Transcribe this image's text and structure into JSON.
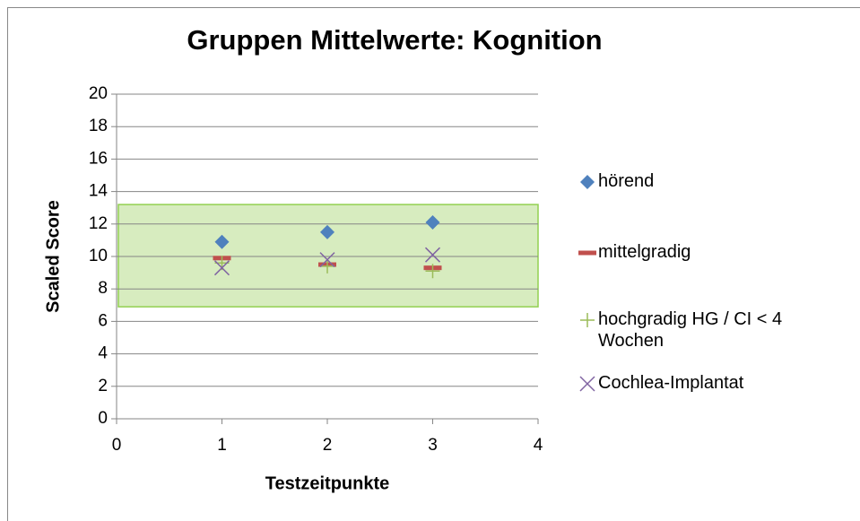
{
  "chart_data": {
    "type": "scatter",
    "title": "Gruppen Mittelwerte:  Kognition",
    "x_label": "Testzeitpunkte",
    "y_label": "Scaled Score",
    "xlim": [
      0,
      4
    ],
    "ylim": [
      0,
      20
    ],
    "xticks": [
      0,
      1,
      2,
      3,
      4
    ],
    "yticks": [
      0,
      2,
      4,
      6,
      8,
      10,
      12,
      14,
      16,
      18,
      20
    ],
    "grid": true,
    "legend": "right",
    "band": {
      "ymin": 6.9,
      "ymax": 13.2,
      "color": "#d7ecbf"
    },
    "x": [
      1,
      2,
      3
    ],
    "series": [
      {
        "name": "hörend",
        "color": "#4f81bd",
        "marker": "diamond",
        "values": [
          10.9,
          11.5,
          12.1
        ]
      },
      {
        "name": "mittelgradig",
        "color": "#c0504d",
        "marker": "dash",
        "values": [
          9.9,
          9.5,
          9.3
        ]
      },
      {
        "name": "hochgradig HG / CI < 4 Wochen",
        "color": "#9bbb59",
        "marker": "plus",
        "values": [
          9.6,
          9.4,
          9.1
        ]
      },
      {
        "name": "Cochlea-Implantat",
        "color": "#8064a2",
        "marker": "x",
        "values": [
          9.3,
          9.8,
          10.1
        ]
      }
    ]
  }
}
